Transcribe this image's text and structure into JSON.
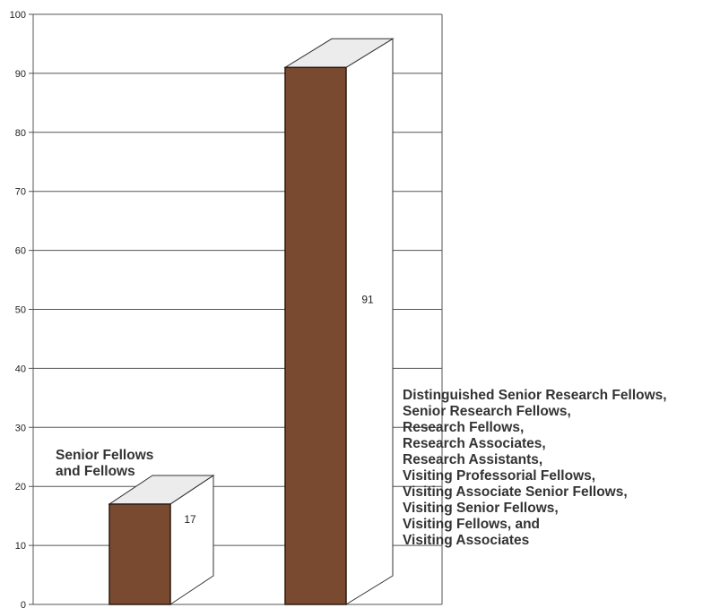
{
  "chart_data": {
    "type": "bar",
    "style": "3d",
    "categories": [
      [
        "Senior Fellows",
        "and Fellows"
      ],
      [
        "Distinguished Senior Research Fellows,",
        "Senior Research Fellows,",
        "Research Fellows,",
        "Research Associates,",
        "Research Assistants,",
        "Visiting Professorial Fellows,",
        "Visiting Associate Senior Fellows,",
        "Visiting Senior Fellows,",
        "Visiting Fellows, and",
        "Visiting Associates"
      ]
    ],
    "values": [
      17,
      91
    ],
    "value_labels": [
      "17",
      "91"
    ],
    "ylim": [
      0,
      100
    ],
    "yticks": [
      "0",
      "10",
      "20",
      "30",
      "40",
      "50",
      "60",
      "70",
      "80",
      "90",
      "100"
    ],
    "grid": true,
    "colors": {
      "bar_front": "#7a4a30",
      "bar_side": "#ffffff",
      "bar_top": "#ececec",
      "grid": "#555555"
    }
  }
}
